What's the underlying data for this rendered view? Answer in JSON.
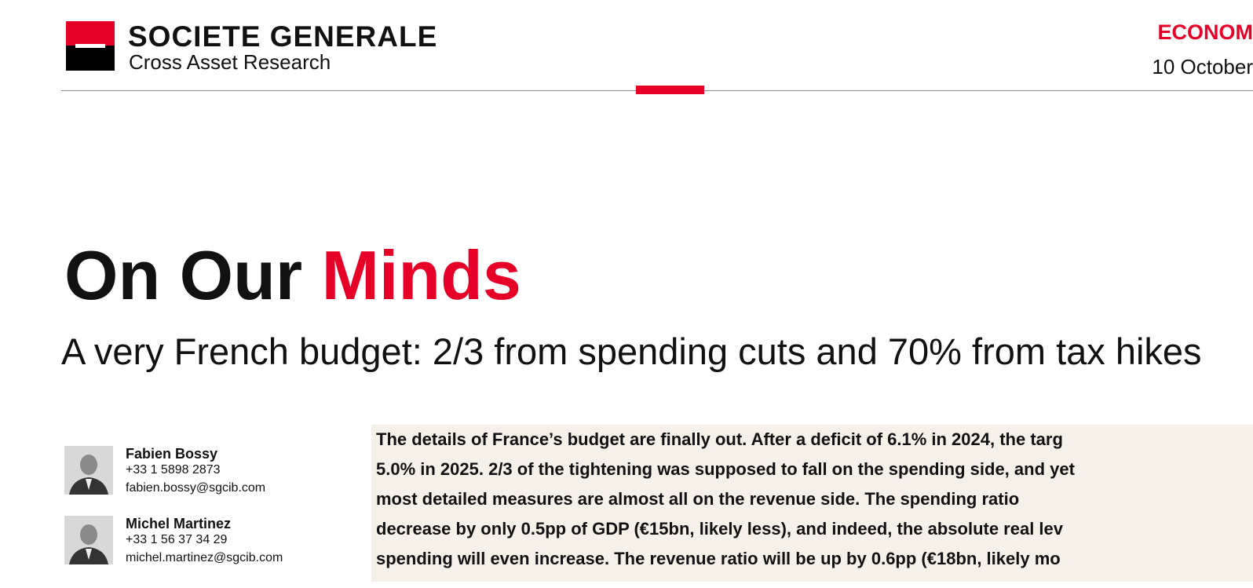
{
  "header": {
    "brand": "SOCIETE GENERALE",
    "division": "Cross Asset Research",
    "category": "ECONOM",
    "date": "10 October"
  },
  "title": {
    "part1": "On Our",
    "part2": "Minds"
  },
  "subtitle": "A very French budget: 2/3 from spending cuts and 70% from tax hikes",
  "authors": [
    {
      "name": "Fabien Bossy",
      "phone": "+33 1 5898 2873",
      "email": "fabien.bossy@sgcib.com"
    },
    {
      "name": "Michel Martinez",
      "phone": "+33 1 56 37 34 29",
      "email": "michel.martinez@sgcib.com"
    }
  ],
  "summary": {
    "lines": [
      "The details of France’s budget are finally out. After a deficit of 6.1% in 2024, the targ",
      "5.0% in 2025. 2/3 of the tightening was supposed to fall on the spending side, and yet",
      "most detailed measures are almost all on the revenue side. The spending ratio",
      "decrease by only 0.5pp of GDP (€15bn, likely less), and indeed, the absolute real lev",
      "spending will even increase. The revenue ratio will be up by 0.6pp (€18bn, likely mo"
    ]
  }
}
